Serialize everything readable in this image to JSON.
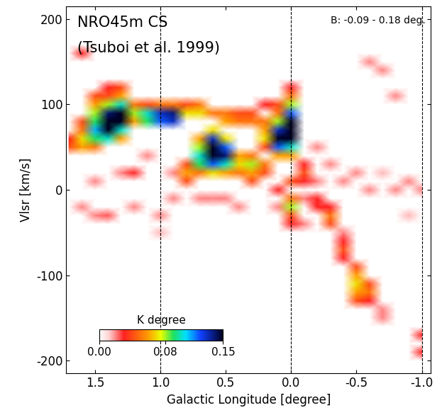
{
  "chart_data": {
    "type": "heatmap",
    "title": "NRO45m CS",
    "subtitle": "(Tsuboi et al. 1999)",
    "annotation": "B: -0.09 - 0.18 deg.",
    "x_label": "Galactic Longitude [degree]",
    "y_label": "Vlsr [km/s]",
    "colorbar_label": "K degree",
    "xlim": [
      1.72,
      -1.07
    ],
    "xticks": [
      {
        "value": 1.5,
        "label": "1.5"
      },
      {
        "value": 1.0,
        "label": "1.0"
      },
      {
        "value": 0.5,
        "label": "0.5"
      },
      {
        "value": 0.0,
        "label": "0.0"
      },
      {
        "value": -0.5,
        "label": "-0.5"
      },
      {
        "value": -1.0,
        "label": "-1.0"
      }
    ],
    "ylim": [
      -215,
      215
    ],
    "yticks": [
      -200,
      -100,
      0,
      100,
      200
    ],
    "vlines": [
      1.0,
      0.0,
      -1.0
    ],
    "clim": [
      0,
      0.15
    ],
    "cticks": [
      {
        "value": 0,
        "label": "0.00"
      },
      {
        "value": 0.08,
        "label": "0.08"
      },
      {
        "value": 0.15,
        "label": "0.15"
      }
    ],
    "l_centers": [
      1.7,
      1.6,
      1.5,
      1.4,
      1.3,
      1.2,
      1.1,
      1.0,
      0.9,
      0.8,
      0.7,
      0.6,
      0.5,
      0.4,
      0.3,
      0.2,
      0.1,
      0.0,
      -0.1,
      -0.2,
      -0.3,
      -0.4,
      -0.5,
      -0.6,
      -0.7,
      -0.8,
      -0.9,
      -1.0
    ],
    "v_centers": [
      -200,
      -190,
      -180,
      -170,
      -160,
      -150,
      -140,
      -130,
      -120,
      -110,
      -100,
      -90,
      -80,
      -70,
      -60,
      -50,
      -40,
      -30,
      -20,
      -10,
      0,
      10,
      20,
      30,
      40,
      50,
      60,
      70,
      80,
      90,
      100,
      110,
      120,
      130,
      140,
      150,
      160,
      170,
      180,
      190,
      200
    ],
    "cells": [
      [
        1.7,
        50,
        0.04
      ],
      [
        1.7,
        60,
        0.03
      ],
      [
        1.6,
        50,
        0.06
      ],
      [
        1.6,
        60,
        0.07
      ],
      [
        1.6,
        70,
        0.05
      ],
      [
        1.6,
        80,
        0.04
      ],
      [
        1.6,
        160,
        0.03
      ],
      [
        1.6,
        -20,
        0.02
      ],
      [
        1.5,
        50,
        0.05
      ],
      [
        1.5,
        60,
        0.09
      ],
      [
        1.5,
        70,
        0.11
      ],
      [
        1.5,
        80,
        0.09
      ],
      [
        1.5,
        90,
        0.08
      ],
      [
        1.5,
        100,
        0.06
      ],
      [
        1.5,
        110,
        0.04
      ],
      [
        1.5,
        -30,
        0.02
      ],
      [
        1.5,
        10,
        0.02
      ],
      [
        1.4,
        60,
        0.1
      ],
      [
        1.4,
        70,
        0.15
      ],
      [
        1.4,
        80,
        0.15
      ],
      [
        1.4,
        90,
        0.14
      ],
      [
        1.4,
        100,
        0.08
      ],
      [
        1.4,
        110,
        0.04
      ],
      [
        1.4,
        120,
        0.03
      ],
      [
        1.4,
        -30,
        0.025
      ],
      [
        1.3,
        60,
        0.06
      ],
      [
        1.3,
        70,
        0.1
      ],
      [
        1.3,
        80,
        0.15
      ],
      [
        1.3,
        90,
        0.15
      ],
      [
        1.3,
        100,
        0.1
      ],
      [
        1.3,
        110,
        0.06
      ],
      [
        1.3,
        120,
        0.04
      ],
      [
        1.3,
        20,
        0.02
      ],
      [
        1.2,
        80,
        0.06
      ],
      [
        1.2,
        90,
        0.08
      ],
      [
        1.2,
        100,
        0.05
      ],
      [
        1.2,
        20,
        0.03
      ],
      [
        1.2,
        -20,
        0.02
      ],
      [
        1.1,
        80,
        0.09
      ],
      [
        1.1,
        90,
        0.1
      ],
      [
        1.1,
        100,
        0.04
      ],
      [
        1.1,
        40,
        0.02
      ],
      [
        1.0,
        80,
        0.12
      ],
      [
        1.0,
        90,
        0.13
      ],
      [
        1.0,
        100,
        0.05
      ],
      [
        1.0,
        -30,
        0.02
      ],
      [
        1.0,
        -50,
        0.015
      ],
      [
        0.9,
        80,
        0.13
      ],
      [
        0.9,
        90,
        0.14
      ],
      [
        0.9,
        100,
        0.05
      ],
      [
        0.9,
        20,
        0.02
      ],
      [
        0.9,
        -10,
        0.02
      ],
      [
        0.8,
        10,
        0.04
      ],
      [
        0.8,
        20,
        0.06
      ],
      [
        0.8,
        30,
        0.04
      ],
      [
        0.8,
        90,
        0.07
      ],
      [
        0.8,
        100,
        0.04
      ],
      [
        0.7,
        20,
        0.05
      ],
      [
        0.7,
        30,
        0.09
      ],
      [
        0.7,
        40,
        0.1
      ],
      [
        0.7,
        50,
        0.08
      ],
      [
        0.7,
        60,
        0.06
      ],
      [
        0.7,
        90,
        0.07
      ],
      [
        0.7,
        100,
        0.05
      ],
      [
        0.7,
        -10,
        0.02
      ],
      [
        0.6,
        20,
        0.07
      ],
      [
        0.6,
        30,
        0.12
      ],
      [
        0.6,
        40,
        0.15
      ],
      [
        0.6,
        50,
        0.15
      ],
      [
        0.6,
        60,
        0.13
      ],
      [
        0.6,
        70,
        0.07
      ],
      [
        0.6,
        90,
        0.05
      ],
      [
        0.6,
        -10,
        0.02
      ],
      [
        0.5,
        20,
        0.06
      ],
      [
        0.5,
        30,
        0.1
      ],
      [
        0.5,
        40,
        0.14
      ],
      [
        0.5,
        50,
        0.12
      ],
      [
        0.5,
        60,
        0.07
      ],
      [
        0.5,
        80,
        0.06
      ],
      [
        0.5,
        90,
        0.05
      ],
      [
        0.5,
        -10,
        0.02
      ],
      [
        0.4,
        20,
        0.05
      ],
      [
        0.4,
        30,
        0.07
      ],
      [
        0.4,
        40,
        0.06
      ],
      [
        0.4,
        80,
        0.05
      ],
      [
        0.4,
        90,
        0.04
      ],
      [
        0.4,
        -20,
        0.02
      ],
      [
        0.3,
        10,
        0.04
      ],
      [
        0.3,
        20,
        0.06
      ],
      [
        0.3,
        30,
        0.08
      ],
      [
        0.3,
        40,
        0.05
      ],
      [
        0.3,
        80,
        0.05
      ],
      [
        0.3,
        90,
        0.04
      ],
      [
        0.2,
        20,
        0.04
      ],
      [
        0.2,
        30,
        0.05
      ],
      [
        0.2,
        50,
        0.04
      ],
      [
        0.2,
        60,
        0.07
      ],
      [
        0.2,
        70,
        0.06
      ],
      [
        0.2,
        80,
        0.05
      ],
      [
        0.2,
        100,
        0.03
      ],
      [
        0.1,
        40,
        0.06
      ],
      [
        0.1,
        50,
        0.12
      ],
      [
        0.1,
        60,
        0.15
      ],
      [
        0.1,
        70,
        0.13
      ],
      [
        0.1,
        80,
        0.08
      ],
      [
        0.1,
        90,
        0.05
      ],
      [
        0.1,
        100,
        0.04
      ],
      [
        0.1,
        0,
        0.03
      ],
      [
        0.1,
        -20,
        0.02
      ],
      [
        0.0,
        40,
        0.06
      ],
      [
        0.0,
        50,
        0.1
      ],
      [
        0.0,
        60,
        0.15
      ],
      [
        0.0,
        70,
        0.15
      ],
      [
        0.0,
        80,
        0.15
      ],
      [
        0.0,
        90,
        0.12
      ],
      [
        0.0,
        100,
        0.08
      ],
      [
        0.0,
        110,
        0.05
      ],
      [
        0.0,
        120,
        0.03
      ],
      [
        0.0,
        -10,
        0.05
      ],
      [
        0.0,
        -20,
        0.08
      ],
      [
        0.0,
        -30,
        0.04
      ],
      [
        0.0,
        -40,
        0.03
      ],
      [
        0.0,
        10,
        0.04
      ],
      [
        -0.1,
        10,
        0.03
      ],
      [
        -0.1,
        20,
        0.04
      ],
      [
        -0.1,
        30,
        0.03
      ],
      [
        -0.1,
        -10,
        0.02
      ],
      [
        -0.1,
        -40,
        0.02
      ],
      [
        -0.2,
        -10,
        0.03
      ],
      [
        -0.2,
        -20,
        0.03
      ],
      [
        -0.2,
        10,
        0.02
      ],
      [
        -0.2,
        50,
        0.02
      ],
      [
        -0.3,
        -30,
        0.05
      ],
      [
        -0.3,
        -40,
        0.04
      ],
      [
        -0.3,
        -20,
        0.03
      ],
      [
        -0.3,
        30,
        0.02
      ],
      [
        -0.4,
        -60,
        0.03
      ],
      [
        -0.4,
        -70,
        0.04
      ],
      [
        -0.4,
        -80,
        0.03
      ],
      [
        -0.4,
        -50,
        0.02
      ],
      [
        -0.4,
        10,
        0.02
      ],
      [
        -0.5,
        -90,
        0.04
      ],
      [
        -0.5,
        -100,
        0.06
      ],
      [
        -0.5,
        -110,
        0.07
      ],
      [
        -0.5,
        -120,
        0.06
      ],
      [
        -0.5,
        -130,
        0.04
      ],
      [
        -0.5,
        20,
        0.02
      ],
      [
        -0.6,
        -110,
        0.04
      ],
      [
        -0.6,
        -120,
        0.05
      ],
      [
        -0.6,
        -130,
        0.03
      ],
      [
        -0.6,
        150,
        0.02
      ],
      [
        -0.6,
        0,
        0.02
      ],
      [
        -0.7,
        -140,
        0.02
      ],
      [
        -0.7,
        -150,
        0.02
      ],
      [
        -0.7,
        140,
        0.02
      ],
      [
        -0.7,
        20,
        0.015
      ],
      [
        -0.8,
        110,
        0.02
      ],
      [
        -0.8,
        0,
        0.02
      ],
      [
        -0.9,
        10,
        0.02
      ],
      [
        -0.9,
        -30,
        0.015
      ],
      [
        -1.0,
        -170,
        0.03
      ],
      [
        -1.0,
        -190,
        0.03
      ],
      [
        -1.0,
        0,
        0.02
      ]
    ]
  }
}
